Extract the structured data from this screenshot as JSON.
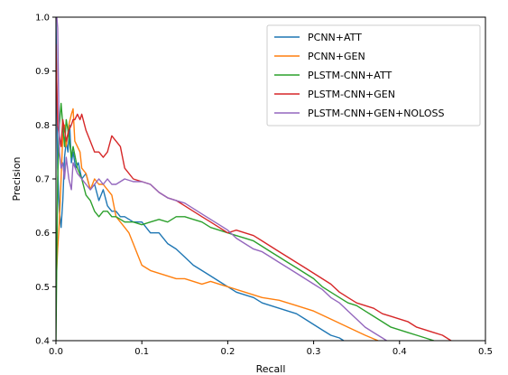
{
  "chart_data": {
    "type": "line",
    "title": "",
    "xlabel": "Recall",
    "ylabel": "Precision",
    "xlim": [
      0,
      0.5
    ],
    "ylim": [
      0.4,
      1.0
    ],
    "xticks": [
      0,
      0.1,
      0.2,
      0.3,
      0.4,
      0.5
    ],
    "xtick_labels": [
      "0.0",
      "0.1",
      "0.2",
      "0.3",
      "0.4",
      "0.5"
    ],
    "yticks": [
      0.4,
      0.5,
      0.6,
      0.7,
      0.8,
      0.9,
      1.0
    ],
    "ytick_labels": [
      "0.4",
      "0.5",
      "0.6",
      "0.7",
      "0.8",
      "0.9",
      "1.0"
    ],
    "grid": false,
    "legend_position": "top-right",
    "series": [
      {
        "name": "PCNN+ATT",
        "color": "#1f77b4",
        "x": [
          0.0,
          0.002,
          0.004,
          0.006,
          0.008,
          0.01,
          0.012,
          0.014,
          0.016,
          0.018,
          0.02,
          0.023,
          0.026,
          0.03,
          0.035,
          0.04,
          0.045,
          0.05,
          0.055,
          0.06,
          0.065,
          0.07,
          0.075,
          0.08,
          0.09,
          0.1,
          0.11,
          0.12,
          0.13,
          0.14,
          0.15,
          0.16,
          0.17,
          0.18,
          0.19,
          0.2,
          0.21,
          0.22,
          0.23,
          0.24,
          0.25,
          0.26,
          0.27,
          0.28,
          0.29,
          0.3,
          0.31,
          0.32,
          0.33,
          0.335
        ],
        "y": [
          1.0,
          0.72,
          0.64,
          0.61,
          0.66,
          0.74,
          0.77,
          0.75,
          0.8,
          0.73,
          0.75,
          0.72,
          0.73,
          0.7,
          0.71,
          0.68,
          0.69,
          0.66,
          0.68,
          0.65,
          0.64,
          0.64,
          0.63,
          0.63,
          0.62,
          0.62,
          0.6,
          0.6,
          0.58,
          0.57,
          0.555,
          0.54,
          0.53,
          0.52,
          0.51,
          0.5,
          0.49,
          0.485,
          0.48,
          0.47,
          0.465,
          0.46,
          0.455,
          0.45,
          0.44,
          0.43,
          0.42,
          0.41,
          0.405,
          0.4
        ]
      },
      {
        "name": "PCNN+GEN",
        "color": "#ff7f0e",
        "x": [
          0.0,
          0.002,
          0.004,
          0.006,
          0.008,
          0.01,
          0.012,
          0.015,
          0.018,
          0.02,
          0.022,
          0.025,
          0.028,
          0.03,
          0.035,
          0.04,
          0.045,
          0.05,
          0.055,
          0.06,
          0.065,
          0.07,
          0.075,
          0.08,
          0.085,
          0.09,
          0.095,
          0.1,
          0.11,
          0.12,
          0.13,
          0.14,
          0.15,
          0.16,
          0.17,
          0.18,
          0.19,
          0.2,
          0.22,
          0.24,
          0.26,
          0.28,
          0.3,
          0.32,
          0.34,
          0.36,
          0.375
        ],
        "y": [
          0.5,
          0.57,
          0.62,
          0.7,
          0.78,
          0.8,
          0.76,
          0.8,
          0.82,
          0.83,
          0.77,
          0.76,
          0.75,
          0.72,
          0.71,
          0.68,
          0.7,
          0.69,
          0.69,
          0.68,
          0.67,
          0.63,
          0.62,
          0.61,
          0.6,
          0.58,
          0.56,
          0.54,
          0.53,
          0.525,
          0.52,
          0.515,
          0.515,
          0.51,
          0.505,
          0.51,
          0.505,
          0.5,
          0.49,
          0.48,
          0.475,
          0.465,
          0.455,
          0.44,
          0.425,
          0.41,
          0.4
        ]
      },
      {
        "name": "PLSTM-CNN+ATT",
        "color": "#2ca02c",
        "x": [
          0.0,
          0.002,
          0.004,
          0.006,
          0.008,
          0.01,
          0.012,
          0.015,
          0.018,
          0.02,
          0.025,
          0.03,
          0.035,
          0.04,
          0.045,
          0.05,
          0.055,
          0.06,
          0.065,
          0.07,
          0.08,
          0.09,
          0.1,
          0.11,
          0.12,
          0.13,
          0.14,
          0.15,
          0.16,
          0.17,
          0.18,
          0.19,
          0.2,
          0.21,
          0.22,
          0.23,
          0.24,
          0.25,
          0.26,
          0.27,
          0.28,
          0.29,
          0.3,
          0.31,
          0.32,
          0.33,
          0.34,
          0.35,
          0.36,
          0.37,
          0.38,
          0.39,
          0.4,
          0.41,
          0.42,
          0.43,
          0.44
        ],
        "y": [
          0.4,
          0.7,
          0.8,
          0.84,
          0.8,
          0.76,
          0.81,
          0.78,
          0.74,
          0.76,
          0.72,
          0.7,
          0.67,
          0.66,
          0.64,
          0.63,
          0.64,
          0.64,
          0.63,
          0.63,
          0.62,
          0.62,
          0.615,
          0.62,
          0.625,
          0.62,
          0.63,
          0.63,
          0.625,
          0.62,
          0.61,
          0.605,
          0.6,
          0.595,
          0.59,
          0.585,
          0.575,
          0.565,
          0.555,
          0.545,
          0.535,
          0.525,
          0.515,
          0.5,
          0.49,
          0.48,
          0.47,
          0.465,
          0.455,
          0.445,
          0.435,
          0.425,
          0.42,
          0.415,
          0.41,
          0.405,
          0.4
        ]
      },
      {
        "name": "PLSTM-CNN+GEN",
        "color": "#d62728",
        "x": [
          0.0,
          0.002,
          0.004,
          0.006,
          0.008,
          0.01,
          0.012,
          0.015,
          0.018,
          0.02,
          0.022,
          0.025,
          0.028,
          0.03,
          0.035,
          0.04,
          0.045,
          0.05,
          0.055,
          0.06,
          0.065,
          0.07,
          0.075,
          0.08,
          0.09,
          0.1,
          0.11,
          0.12,
          0.13,
          0.14,
          0.15,
          0.16,
          0.17,
          0.18,
          0.19,
          0.2,
          0.21,
          0.22,
          0.23,
          0.24,
          0.25,
          0.26,
          0.27,
          0.28,
          0.29,
          0.3,
          0.31,
          0.32,
          0.33,
          0.34,
          0.35,
          0.36,
          0.37,
          0.38,
          0.39,
          0.4,
          0.41,
          0.42,
          0.43,
          0.44,
          0.45,
          0.46
        ],
        "y": [
          0.95,
          0.8,
          0.78,
          0.76,
          0.81,
          0.79,
          0.77,
          0.79,
          0.8,
          0.81,
          0.81,
          0.82,
          0.81,
          0.82,
          0.79,
          0.77,
          0.75,
          0.75,
          0.74,
          0.75,
          0.78,
          0.77,
          0.76,
          0.72,
          0.7,
          0.695,
          0.69,
          0.675,
          0.665,
          0.66,
          0.65,
          0.64,
          0.63,
          0.62,
          0.61,
          0.6,
          0.605,
          0.6,
          0.595,
          0.585,
          0.575,
          0.565,
          0.555,
          0.545,
          0.535,
          0.525,
          0.515,
          0.505,
          0.49,
          0.48,
          0.47,
          0.465,
          0.46,
          0.45,
          0.445,
          0.44,
          0.435,
          0.425,
          0.42,
          0.415,
          0.41,
          0.4
        ]
      },
      {
        "name": "PLSTM-CNN+GEN+NOLOSS",
        "color": "#9467bd",
        "x": [
          0.0,
          0.001,
          0.002,
          0.004,
          0.006,
          0.008,
          0.01,
          0.012,
          0.015,
          0.018,
          0.02,
          0.025,
          0.03,
          0.035,
          0.04,
          0.045,
          0.05,
          0.055,
          0.06,
          0.065,
          0.07,
          0.08,
          0.09,
          0.1,
          0.11,
          0.12,
          0.13,
          0.14,
          0.15,
          0.16,
          0.17,
          0.18,
          0.19,
          0.2,
          0.21,
          0.22,
          0.23,
          0.24,
          0.25,
          0.26,
          0.27,
          0.28,
          0.29,
          0.3,
          0.31,
          0.32,
          0.33,
          0.34,
          0.35,
          0.36,
          0.37,
          0.38,
          0.385
        ],
        "y": [
          1.0,
          1.0,
          0.98,
          0.75,
          0.72,
          0.73,
          0.7,
          0.74,
          0.7,
          0.68,
          0.73,
          0.71,
          0.7,
          0.69,
          0.68,
          0.69,
          0.7,
          0.69,
          0.7,
          0.69,
          0.69,
          0.7,
          0.695,
          0.695,
          0.69,
          0.675,
          0.665,
          0.66,
          0.655,
          0.645,
          0.635,
          0.625,
          0.615,
          0.605,
          0.59,
          0.58,
          0.57,
          0.565,
          0.555,
          0.545,
          0.535,
          0.525,
          0.515,
          0.505,
          0.495,
          0.48,
          0.47,
          0.455,
          0.44,
          0.425,
          0.415,
          0.405,
          0.4
        ]
      }
    ]
  }
}
